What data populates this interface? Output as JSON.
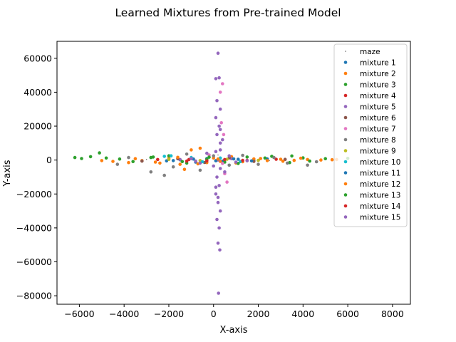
{
  "chart_data": {
    "type": "scatter",
    "title": "Learned Mixtures from Pre-trained Model",
    "xlabel": "X-axis",
    "ylabel": "Y-axis",
    "xlim": [
      -7000,
      8800
    ],
    "ylim": [
      -85000,
      70000
    ],
    "xticks": [
      -6000,
      -4000,
      -2000,
      0,
      2000,
      4000,
      6000,
      8000
    ],
    "yticks": [
      -80000,
      -60000,
      -40000,
      -20000,
      0,
      20000,
      40000,
      60000
    ],
    "grid": false,
    "legend_position": "top-right",
    "series": [
      {
        "name": "maze",
        "color": "#7f7f7f",
        "marker_size": 1,
        "points": [
          [
            -3000,
            400
          ],
          [
            -1200,
            -800
          ],
          [
            800,
            1200
          ],
          [
            2500,
            -300
          ],
          [
            4000,
            600
          ],
          [
            200,
            3000
          ]
        ]
      },
      {
        "name": "mixture 1",
        "color": "#1f77b4",
        "points": [
          [
            -1500,
            200
          ],
          [
            -800,
            -1200
          ],
          [
            -300,
            900
          ],
          [
            400,
            -600
          ],
          [
            1100,
            500
          ],
          [
            1800,
            -300
          ],
          [
            2400,
            700
          ],
          [
            -2100,
            -500
          ]
        ]
      },
      {
        "name": "mixture 2",
        "color": "#ff7f0e",
        "points": [
          [
            -4500,
            -800
          ],
          [
            -3800,
            -1500
          ],
          [
            -3200,
            -300
          ],
          [
            -2600,
            -1200
          ],
          [
            -2000,
            1000
          ],
          [
            -1500,
            -2500
          ],
          [
            -1000,
            6000
          ],
          [
            -600,
            7000
          ],
          [
            -300,
            -1500
          ],
          [
            0,
            1200
          ],
          [
            300,
            -800
          ],
          [
            800,
            2000
          ],
          [
            1300,
            -1000
          ],
          [
            1800,
            700
          ],
          [
            2400,
            -300
          ],
          [
            3000,
            500
          ],
          [
            3600,
            -200
          ],
          [
            4200,
            300
          ],
          [
            4800,
            0
          ],
          [
            5300,
            200
          ],
          [
            -5000,
            -300
          ],
          [
            -1300,
            -5500
          ]
        ]
      },
      {
        "name": "mixture 3",
        "color": "#2ca02c",
        "points": [
          [
            -6200,
            1500
          ],
          [
            -5900,
            900
          ],
          [
            -5500,
            2000
          ],
          [
            -5100,
            4200
          ],
          [
            -4800,
            1200
          ],
          [
            -4200,
            600
          ],
          [
            -3600,
            -900
          ],
          [
            -2800,
            1500
          ],
          [
            -2000,
            2500
          ],
          [
            -1200,
            -1800
          ],
          [
            -300,
            500
          ],
          [
            500,
            -1200
          ],
          [
            1500,
            1800
          ],
          [
            2600,
            2200
          ],
          [
            3400,
            -1500
          ],
          [
            4000,
            1300
          ],
          [
            5000,
            800
          ],
          [
            6000,
            1000
          ]
        ]
      },
      {
        "name": "mixture 4",
        "color": "#d62728",
        "points": [
          [
            -2500,
            300
          ],
          [
            -1200,
            -600
          ],
          [
            200,
            400
          ],
          [
            1500,
            -200
          ],
          [
            2800,
            500
          ]
        ]
      },
      {
        "name": "mixture 5",
        "color": "#9467bd",
        "points": [
          [
            200,
            63000
          ],
          [
            100,
            48000
          ],
          [
            250,
            48500
          ],
          [
            150,
            35000
          ],
          [
            300,
            30000
          ],
          [
            100,
            25000
          ],
          [
            250,
            20000
          ],
          [
            150,
            15000
          ],
          [
            300,
            10000
          ],
          [
            100,
            5000
          ],
          [
            200,
            0
          ],
          [
            300,
            -5000
          ],
          [
            150,
            -10000
          ],
          [
            250,
            -15000
          ],
          [
            100,
            -20000
          ],
          [
            200,
            -25000
          ],
          [
            300,
            -30000
          ],
          [
            150,
            -35000
          ],
          [
            250,
            -40000
          ],
          [
            200,
            -49000
          ],
          [
            280,
            -53000
          ],
          [
            220,
            -78500
          ],
          [
            -1500,
            300
          ],
          [
            -800,
            -600
          ],
          [
            800,
            800
          ],
          [
            1500,
            -400
          ]
        ]
      },
      {
        "name": "mixture 6",
        "color": "#8c564b",
        "points": [
          [
            -3200,
            -600
          ],
          [
            -1600,
            800
          ],
          [
            -400,
            -1400
          ],
          [
            700,
            1300
          ],
          [
            1800,
            -800
          ],
          [
            3200,
            400
          ]
        ]
      },
      {
        "name": "mixture 7",
        "color": "#e377c2",
        "points": [
          [
            300,
            40000
          ],
          [
            400,
            45000
          ],
          [
            350,
            22000
          ],
          [
            450,
            15000
          ],
          [
            500,
            -8000
          ],
          [
            600,
            -13000
          ],
          [
            400,
            -2000
          ],
          [
            -200,
            3000
          ]
        ]
      },
      {
        "name": "mixture 8",
        "color": "#7f7f7f",
        "points": [
          [
            -4300,
            -2500
          ],
          [
            -3800,
            1500
          ],
          [
            -2800,
            -7000
          ],
          [
            -2200,
            -9000
          ],
          [
            -1800,
            -4000
          ],
          [
            -1200,
            3500
          ],
          [
            -600,
            -6000
          ],
          [
            0,
            2500
          ],
          [
            700,
            -3000
          ],
          [
            1300,
            2800
          ],
          [
            2000,
            -2500
          ],
          [
            2700,
            1500
          ],
          [
            3300,
            -1800
          ],
          [
            4200,
            -3000
          ],
          [
            4600,
            -1000
          ]
        ]
      },
      {
        "name": "mixture 9",
        "color": "#bcbd22",
        "points": [
          [
            -2000,
            400
          ],
          [
            -600,
            -300
          ],
          [
            600,
            500
          ],
          [
            2000,
            -200
          ]
        ]
      },
      {
        "name": "mixture 10",
        "color": "#17becf",
        "points": [
          [
            -2200,
            2200
          ],
          [
            -1900,
            2500
          ],
          [
            -1000,
            1500
          ],
          [
            -500,
            -1000
          ],
          [
            300,
            1200
          ],
          [
            1200,
            -900
          ]
        ]
      },
      {
        "name": "mixture 11",
        "color": "#1f77b4",
        "points": [
          [
            -1800,
            -300
          ],
          [
            -900,
            600
          ],
          [
            100,
            -400
          ],
          [
            900,
            700
          ],
          [
            1700,
            -500
          ]
        ]
      },
      {
        "name": "mixture 12",
        "color": "#ff7f0e",
        "points": [
          [
            -3500,
            800
          ],
          [
            -2400,
            -1800
          ],
          [
            -1600,
            1600
          ],
          [
            -700,
            -2200
          ],
          [
            200,
            600
          ],
          [
            1000,
            -1700
          ],
          [
            2100,
            900
          ],
          [
            3100,
            -700
          ],
          [
            3900,
            1100
          ],
          [
            5500,
            300
          ]
        ]
      },
      {
        "name": "mixture 13",
        "color": "#2ca02c",
        "points": [
          [
            -2700,
            1800
          ],
          [
            -1400,
            -900
          ],
          [
            -200,
            1700
          ],
          [
            1100,
            -2000
          ],
          [
            2300,
            1200
          ],
          [
            3500,
            2400
          ],
          [
            4300,
            -600
          ]
        ]
      },
      {
        "name": "mixture 14",
        "color": "#d62728",
        "points": [
          [
            -1100,
            300
          ],
          [
            -300,
            -500
          ],
          [
            500,
            300
          ],
          [
            1300,
            -200
          ]
        ]
      },
      {
        "name": "mixture 15",
        "color": "#9467bd",
        "points": [
          [
            -1000,
            800
          ],
          [
            -600,
            -1800
          ],
          [
            -300,
            4000
          ],
          [
            0,
            -3500
          ],
          [
            300,
            6000
          ],
          [
            500,
            -7000
          ],
          [
            700,
            2500
          ],
          [
            1000,
            -1200
          ],
          [
            300,
            18000
          ],
          [
            200,
            -22000
          ],
          [
            400,
            12000
          ],
          [
            100,
            -16000
          ]
        ]
      }
    ]
  }
}
